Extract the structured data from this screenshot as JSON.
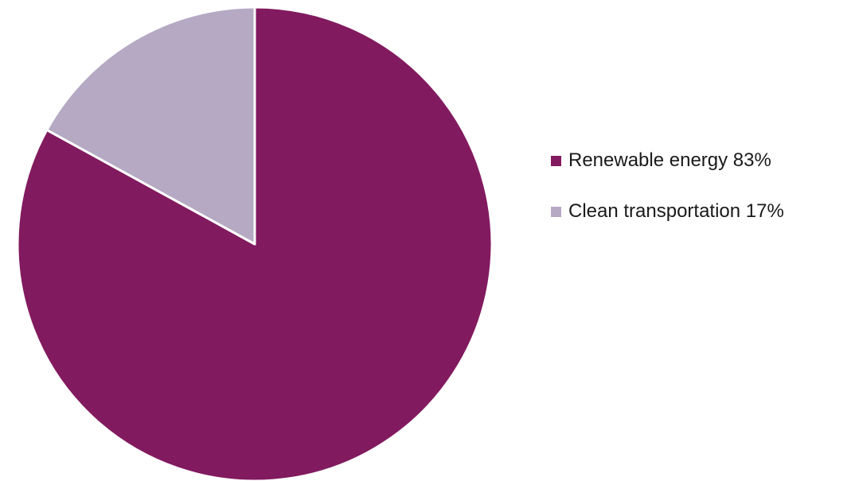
{
  "chart_data": {
    "type": "pie",
    "title": "",
    "slices": [
      {
        "label": "Renewable energy",
        "value": 83,
        "display": "Renewable energy 83%",
        "color": "#821a5f"
      },
      {
        "label": "Clean transportation",
        "value": 17,
        "display": "Clean transportation 17%",
        "color": "#b5a9c3"
      }
    ],
    "start": "12 o'clock",
    "direction": "clockwise",
    "slice_border_color": "#ffffff",
    "legend_position": "right"
  }
}
